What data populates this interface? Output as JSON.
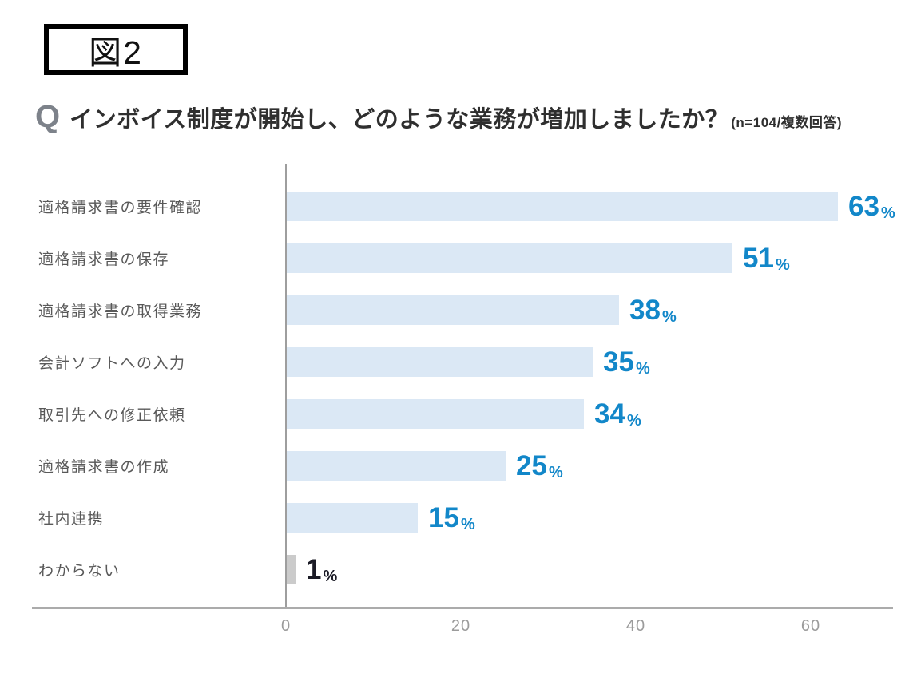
{
  "figure_label": "図2",
  "question": {
    "icon": "Q",
    "title": "インボイス制度が開始し、どのような業務が増加しましたか？",
    "note": "(n=104/複数回答)"
  },
  "chart_data": {
    "type": "bar",
    "orientation": "horizontal",
    "title": "インボイス制度が開始し、どのような業務が増加しましたか？",
    "sample_note": "n=104/複数回答",
    "unit": "%",
    "categories": [
      "適格請求書の要件確認",
      "適格請求書の保存",
      "適格請求書の取得業務",
      "会計ソフトへの入力",
      "取引先への修正依頼",
      "適格請求書の作成",
      "社内連携",
      "わからない"
    ],
    "values": [
      63,
      51,
      38,
      35,
      34,
      25,
      15,
      1
    ],
    "x_ticks": [
      0,
      20,
      40,
      60
    ],
    "xlim": [
      0,
      69
    ],
    "grid": false,
    "legend": false,
    "bar_color_default": "#dbe8f5",
    "bar_color_last": "#cbcbcb",
    "value_color_default": "#1287c9",
    "value_color_last": "#1b1b26"
  },
  "colors": {
    "axis_line": "#ababab",
    "baseline": "#9e9e9e",
    "tick_label": "#9b9b9b",
    "category_label": "#595959",
    "title_text": "#2f2f2f",
    "q_icon": "#7d828a",
    "figure_border": "#000000",
    "background": "#ffffff"
  }
}
